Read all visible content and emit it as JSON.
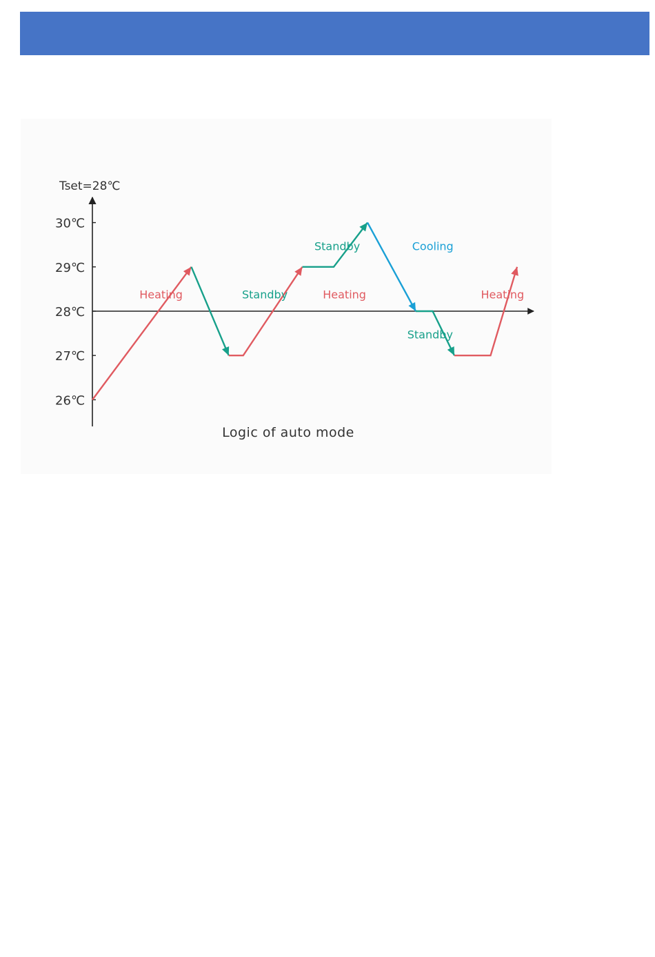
{
  "colors": {
    "header": "#4674c6",
    "heating": "#e05a60",
    "standby": "#17a08a",
    "cooling": "#1aa0d6",
    "axis": "#222222"
  },
  "diagram": {
    "setpoint_label": "Tset=28℃",
    "caption": "Logic of auto mode",
    "y_ticks": [
      {
        "value": 30,
        "label": "30℃"
      },
      {
        "value": 29,
        "label": "29℃"
      },
      {
        "value": 28,
        "label": "28℃"
      },
      {
        "value": 27,
        "label": "27℃"
      },
      {
        "value": 26,
        "label": "26℃"
      }
    ],
    "segments": [
      {
        "mode": "heating",
        "points": [
          [
            0,
            26
          ],
          [
            8.2,
            29
          ]
        ],
        "arrow": true
      },
      {
        "mode": "standby",
        "points": [
          [
            8.2,
            29
          ],
          [
            11.3,
            27
          ]
        ],
        "arrow": true
      },
      {
        "mode": "heating",
        "points": [
          [
            11.3,
            27
          ],
          [
            12.5,
            27
          ],
          [
            17.4,
            29
          ]
        ],
        "arrow": true
      },
      {
        "mode": "standby",
        "points": [
          [
            17.4,
            29
          ],
          [
            20.0,
            29
          ],
          [
            22.8,
            30
          ]
        ],
        "arrow": true
      },
      {
        "mode": "cooling",
        "points": [
          [
            22.8,
            30
          ],
          [
            26.8,
            28
          ]
        ],
        "arrow": true
      },
      {
        "mode": "standby",
        "points": [
          [
            26.8,
            28
          ],
          [
            28.2,
            28
          ],
          [
            30.0,
            27
          ]
        ],
        "arrow": true
      },
      {
        "mode": "heating",
        "points": [
          [
            30.0,
            27
          ],
          [
            33.0,
            27
          ],
          [
            35.2,
            29
          ]
        ],
        "arrow": true
      }
    ],
    "labels": [
      {
        "text": "Heating",
        "mode": "heating",
        "x": 3.9,
        "y": 28.38
      },
      {
        "text": "Standby",
        "mode": "standby",
        "x": 12.4,
        "y": 28.38
      },
      {
        "text": "Heating",
        "mode": "heating",
        "x": 19.1,
        "y": 28.38
      },
      {
        "text": "Standby",
        "mode": "standby",
        "x": 18.4,
        "y": 29.47
      },
      {
        "text": "Cooling",
        "mode": "cooling",
        "x": 26.5,
        "y": 29.47
      },
      {
        "text": "Standby",
        "mode": "standby",
        "x": 26.1,
        "y": 27.48
      },
      {
        "text": "Heating",
        "mode": "heating",
        "x": 32.2,
        "y": 28.38
      }
    ]
  }
}
